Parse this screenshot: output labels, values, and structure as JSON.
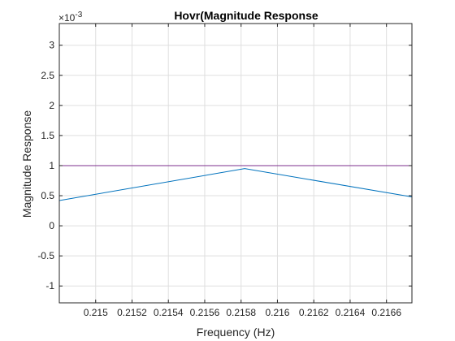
{
  "chart_data": {
    "type": "line",
    "title": "Hovr(Magnitude Response",
    "xlabel": "Frequency (Hz)",
    "ylabel": "Magnitude Response",
    "y_exponent_label": "×10",
    "y_exponent_power": "-3",
    "xlim": [
      0.2148,
      0.21674
    ],
    "ylim": [
      -1.28,
      3.36
    ],
    "grid": true,
    "x_ticks": [
      0.215,
      0.2152,
      0.2154,
      0.2156,
      0.2158,
      0.216,
      0.2162,
      0.2164,
      0.2166
    ],
    "x_tick_labels": [
      "0.215",
      "0.2152",
      "0.2154",
      "0.2156",
      "0.2158",
      "0.216",
      "0.2162",
      "0.2164",
      "0.2166"
    ],
    "y_ticks": [
      -1,
      -0.5,
      0,
      0.5,
      1,
      1.5,
      2,
      2.5,
      3
    ],
    "y_tick_labels": [
      "-1",
      "-0.5",
      "0",
      "0.5",
      "1",
      "1.5",
      "2",
      "2.5",
      "3"
    ],
    "series": [
      {
        "color": "#0072BD",
        "x": [
          0.2148,
          0.21582,
          0.21674
        ],
        "y": [
          0.42,
          0.95,
          0.48
        ]
      },
      {
        "color": "#7E2F8E",
        "x": [
          0.2148,
          0.21674
        ],
        "y": [
          1.0,
          1.0
        ]
      }
    ]
  }
}
